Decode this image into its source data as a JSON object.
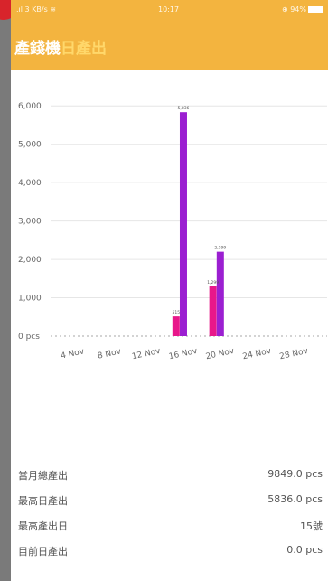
{
  "status_bar": {
    "signal": ".ıl 3 KB/s ≋",
    "time": "10:17",
    "battery": "⊕ 94%"
  },
  "app_bar": {
    "title_prefix": "產錢機",
    "title_suffix": "日產出"
  },
  "colors": {
    "accent": "#f3b43f",
    "series_pink": "#e8178a",
    "series_purple": "#9b1fd1"
  },
  "chart_data": {
    "type": "bar",
    "unit": "pcs",
    "ylim": [
      0,
      6500
    ],
    "yticks": [
      0,
      1000,
      2000,
      3000,
      4000,
      5000,
      6000
    ],
    "ytick_labels": [
      "0 pcs",
      "1,000",
      "2,000",
      "3,000",
      "4,000",
      "5,000",
      "6,000"
    ],
    "x_tick_labels": [
      "4 Nov",
      "8 Nov",
      "12 Nov",
      "16 Nov",
      "20 Nov",
      "24 Nov",
      "28 Nov"
    ],
    "x_tick_days": [
      4,
      8,
      12,
      16,
      20,
      24,
      28
    ],
    "x_range": [
      1,
      30
    ],
    "grid": true,
    "series": [
      {
        "color": "#e8178a",
        "points": [
          {
            "day": 14.6,
            "value": 515,
            "label": "515"
          },
          {
            "day": 18.6,
            "value": 1299,
            "label": "1,299"
          }
        ]
      },
      {
        "color": "#9b1fd1",
        "points": [
          {
            "day": 15.4,
            "value": 5836,
            "label": "5,836"
          },
          {
            "day": 19.4,
            "value": 2199,
            "label": "2,199"
          }
        ]
      }
    ]
  },
  "stats": [
    {
      "label": "當月總產出",
      "value": "9849.0 pcs"
    },
    {
      "label": "最高日產出",
      "value": "5836.0 pcs"
    },
    {
      "label": "最高產出日",
      "value": "15號"
    },
    {
      "label": "目前日產出",
      "value": "0.0 pcs"
    }
  ]
}
